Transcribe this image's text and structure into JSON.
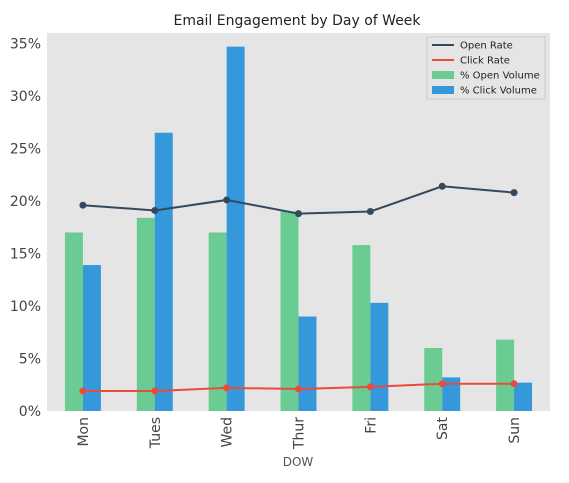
{
  "chart_data": {
    "type": "bar",
    "title": "Email Engagement by Day of Week",
    "xlabel": "DOW",
    "ylabel": "",
    "categories": [
      "Mon",
      "Tues",
      "Wed",
      "Thur",
      "Fri",
      "Sat",
      "Sun"
    ],
    "ylim": [
      0,
      0.36
    ],
    "yticks": [
      "0%",
      "5%",
      "10%",
      "15%",
      "20%",
      "25%",
      "30%",
      "35%"
    ],
    "ytick_values": [
      0,
      0.05,
      0.1,
      0.15,
      0.2,
      0.25,
      0.3,
      0.35
    ],
    "grid": false,
    "legend_position": "top-right",
    "bar_series": [
      {
        "name": "% Open Volume",
        "color": "#6acc92",
        "values": [
          0.17,
          0.184,
          0.17,
          0.19,
          0.158,
          0.06,
          0.068
        ]
      },
      {
        "name": "% Click Volume",
        "color": "#3498db",
        "values": [
          0.139,
          0.265,
          0.347,
          0.09,
          0.103,
          0.032,
          0.027
        ]
      }
    ],
    "line_series": [
      {
        "name": "Open Rate",
        "color": "#34495e",
        "values": [
          0.196,
          0.191,
          0.201,
          0.188,
          0.19,
          0.214,
          0.208
        ]
      },
      {
        "name": "Click Rate",
        "color": "#e74c3c",
        "values": [
          0.019,
          0.019,
          0.022,
          0.021,
          0.023,
          0.026,
          0.026
        ]
      }
    ],
    "legend_order": [
      "Open Rate",
      "Click Rate",
      "% Open Volume",
      "% Click Volume"
    ]
  }
}
